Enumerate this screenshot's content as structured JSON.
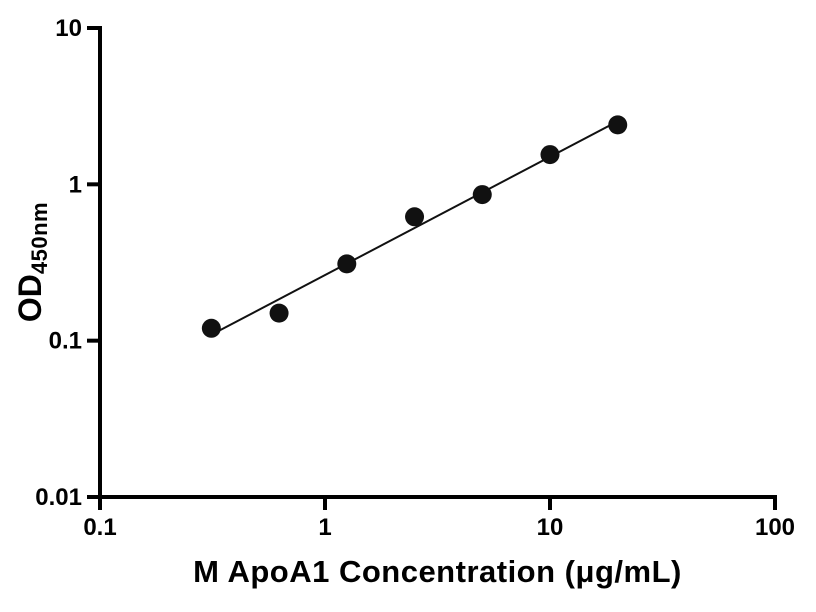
{
  "figure": {
    "background": "#ffffff"
  },
  "axes": {
    "x_title": "M ApoA1 Concentration (μg/mL)",
    "y_title_main": "OD",
    "y_title_sub": "450nm"
  },
  "chart_data": {
    "type": "scatter",
    "title": "",
    "xlabel": "M ApoA1 Concentration (μg/mL)",
    "ylabel": "OD450nm",
    "x": [
      0.3125,
      0.625,
      1.25,
      2.5,
      5,
      10,
      20
    ],
    "y": [
      0.12,
      0.15,
      0.31,
      0.62,
      0.86,
      1.55,
      2.4
    ],
    "xscale": "log",
    "yscale": "log",
    "xlim": [
      0.1,
      100
    ],
    "ylim": [
      0.01,
      10
    ],
    "x_ticks": [
      0.1,
      1,
      10,
      100
    ],
    "x_tick_labels": [
      "0.1",
      "1",
      "10",
      "100"
    ],
    "y_ticks": [
      0.01,
      0.1,
      1,
      10
    ],
    "y_tick_labels": [
      "0.01",
      "0.1",
      "1",
      "10"
    ],
    "grid": false,
    "legend": "none",
    "trendline": "linear-fit-loglog",
    "marker_shape": "circle",
    "marker_color": "#111111",
    "marker_radius": 9.5,
    "line_color": "#111111",
    "line_width": 2,
    "axis_color": "#000000",
    "axis_width": 4
  }
}
